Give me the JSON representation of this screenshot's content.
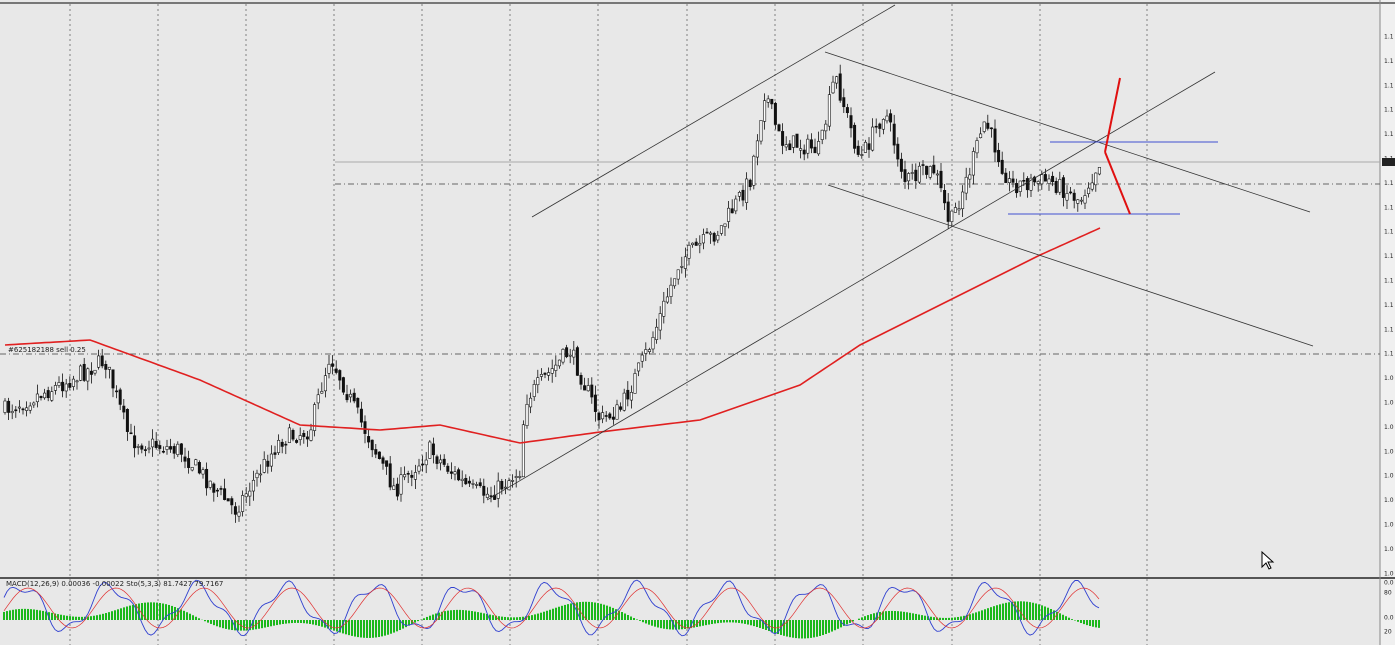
{
  "chart": {
    "order_label": "#625182188 sell 0.25",
    "price_axis_labels": [
      "1.1",
      "1.1",
      "1.1",
      "1.1",
      "1.1",
      "1.1",
      "1.1",
      "1.1",
      "1.1",
      "1.1",
      "1.1",
      "1.1",
      "1.1",
      "1.1",
      "1.0",
      "1.0",
      "1.0",
      "1.0",
      "1.0",
      "1.0",
      "1.0",
      "1.0",
      "1.0"
    ]
  },
  "indicator": {
    "label": "MACD(12,26,9) 0.00036 -0.00022  Sto(5,3,3) 81.7427 79.7167",
    "axis_labels": [
      "0.0",
      "80",
      "0.0",
      "20"
    ]
  }
}
